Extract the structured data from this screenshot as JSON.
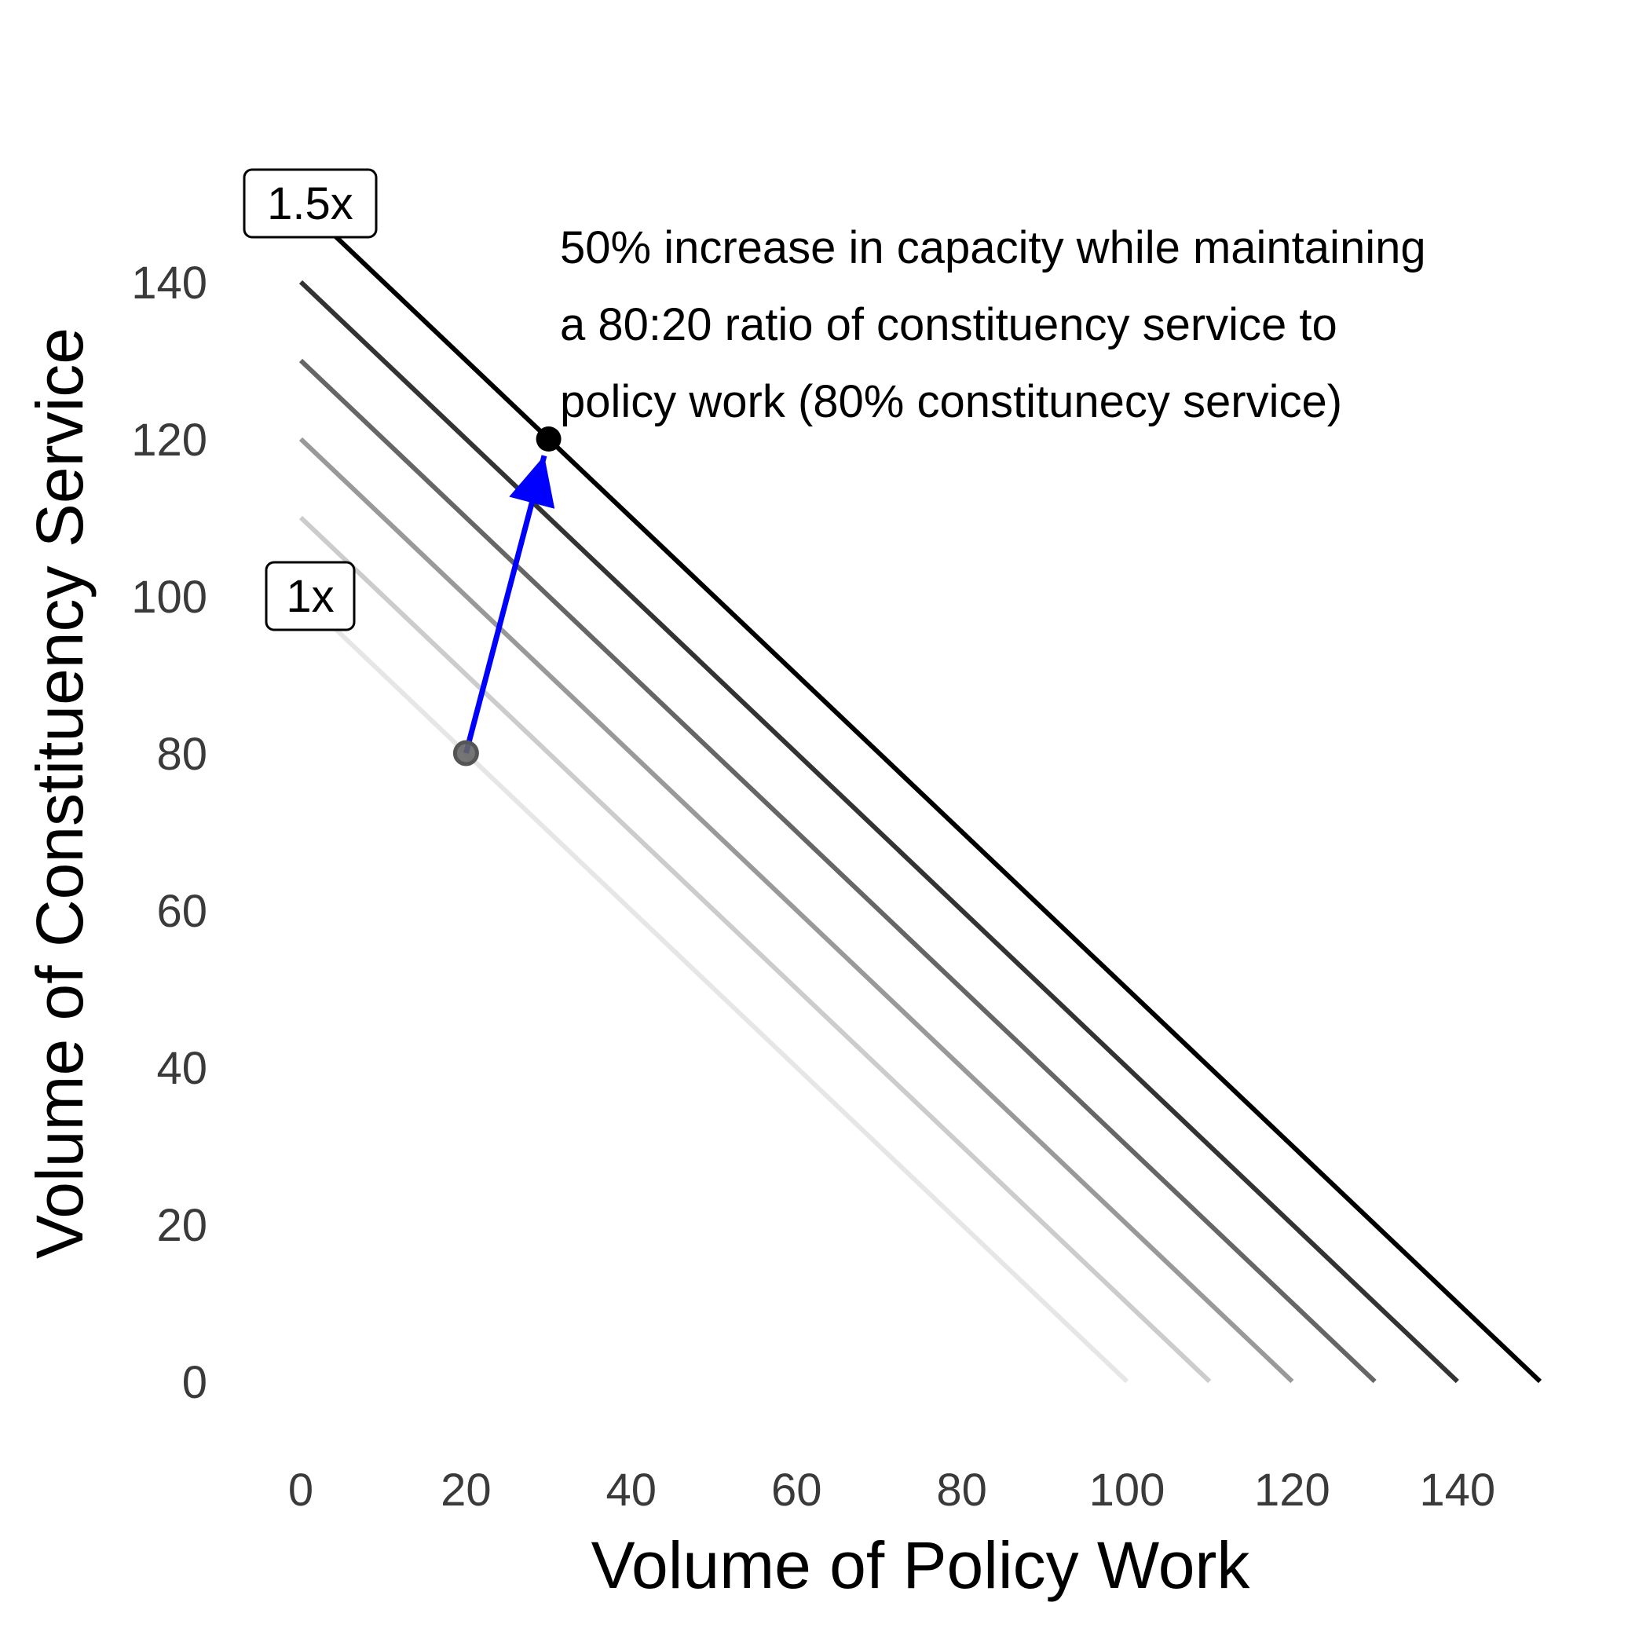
{
  "chart_data": {
    "type": "line",
    "title": "",
    "xlabel": "Volume of Policy Work",
    "ylabel": "Volume of Constituency Service",
    "xlim": [
      -5,
      152
    ],
    "ylim": [
      -5,
      158
    ],
    "x_ticks": [
      0,
      20,
      40,
      60,
      80,
      100,
      120,
      140
    ],
    "y_ticks": [
      0,
      20,
      40,
      60,
      80,
      100,
      120,
      140
    ],
    "grid": false,
    "legend": "none",
    "series": [
      {
        "total": 100,
        "color": "#e6e6e6",
        "points": [
          [
            0,
            100
          ],
          [
            100,
            0
          ]
        ]
      },
      {
        "total": 110,
        "color": "#cccccc",
        "points": [
          [
            0,
            110
          ],
          [
            110,
            0
          ]
        ]
      },
      {
        "total": 120,
        "color": "#999999",
        "points": [
          [
            0,
            120
          ],
          [
            120,
            0
          ]
        ]
      },
      {
        "total": 130,
        "color": "#666666",
        "points": [
          [
            0,
            130
          ],
          [
            130,
            0
          ]
        ]
      },
      {
        "total": 140,
        "color": "#333333",
        "points": [
          [
            0,
            140
          ],
          [
            140,
            0
          ]
        ]
      },
      {
        "total": 150,
        "color": "#000000",
        "points": [
          [
            0,
            150
          ],
          [
            150,
            0
          ]
        ]
      }
    ],
    "points": [
      {
        "x": 20,
        "y": 80,
        "color": "#666666"
      },
      {
        "x": 30,
        "y": 120,
        "color": "#000000"
      }
    ],
    "arrow": {
      "from": [
        20,
        80
      ],
      "to": [
        30,
        120
      ],
      "color": "#0000ff"
    },
    "labels": [
      {
        "text": "1x",
        "x": 0,
        "y": 100
      },
      {
        "text": "1.5x",
        "x": 0,
        "y": 150
      }
    ],
    "annotation": {
      "lines": [
        "50% increase in capacity while maintaining",
        "a 80:20 ratio of constituency service to",
        "policy work (80% constitunecy service)"
      ]
    }
  }
}
